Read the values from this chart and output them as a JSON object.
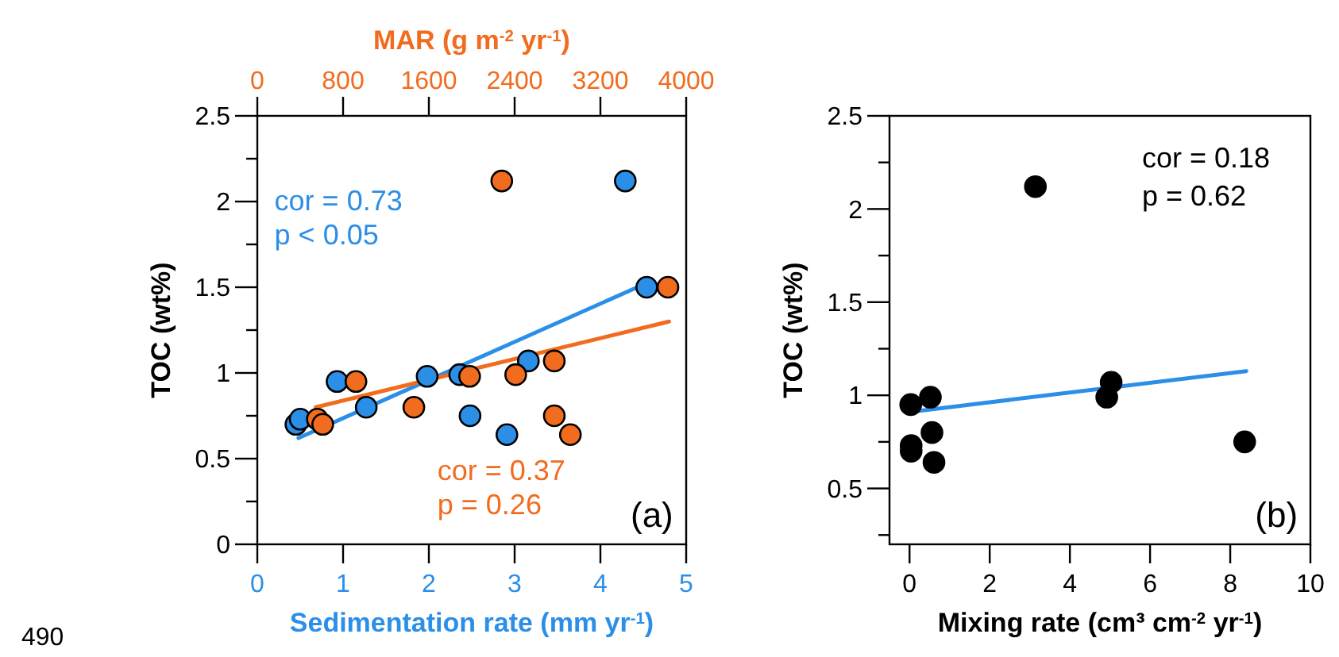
{
  "chart_data": [
    {
      "type": "scatter",
      "xlabel": "Sedimentation rate (mm yr$^{-1}$)",
      "ylabel": "TOC (wt%)",
      "x2label": "MAR (g m$^{-2}$ yr$^{-1}$)",
      "xlim": [
        0,
        5
      ],
      "xticks": [
        0,
        1,
        2,
        3,
        4,
        5
      ],
      "x2lim": [
        0,
        4000
      ],
      "x2ticks": [
        0,
        800,
        1600,
        2400,
        3200,
        4000
      ],
      "ylim": [
        0,
        2.5
      ],
      "yticks": [
        0,
        {
          "value": 0.25,
          "label": null
        },
        0.5,
        {
          "value": 0.75,
          "label": null
        },
        1,
        {
          "value": 1.25,
          "label": null
        },
        1.5,
        {
          "value": 1.75,
          "label": null
        },
        2,
        {
          "value": 2.25,
          "label": null
        },
        2.5
      ],
      "marker": "circle",
      "grid": false,
      "series": [
        {
          "color": "#2b8fe8",
          "x": [
            0.45,
            0.5,
            0.93,
            1.27,
            1.98,
            2.36,
            2.48,
            2.91,
            3.16,
            4.29,
            4.54
          ],
          "values": [
            0.7,
            0.73,
            0.95,
            0.8,
            0.98,
            0.99,
            0.75,
            0.64,
            1.07,
            2.12,
            1.5
          ]
        },
        {
          "axis": "x2",
          "color": "#f26c1f",
          "x": [
            560,
            610,
            920,
            1460,
            1980,
            2280,
            2410,
            2770,
            2770,
            2920,
            3830
          ],
          "values": [
            0.73,
            0.7,
            0.95,
            0.8,
            0.98,
            2.12,
            0.99,
            0.75,
            1.07,
            0.64,
            1.5
          ]
        },
        {
          "type": "line",
          "marker": "none",
          "color": "#2b8fe8",
          "x": [
            0.48,
            4.52
          ],
          "values": [
            0.62,
            1.52
          ]
        },
        {
          "type": "line",
          "marker": "none",
          "axis": "x2",
          "color": "#f26c1f",
          "x": [
            545,
            3840
          ],
          "values": [
            0.8,
            1.3
          ]
        }
      ],
      "annotations": [
        "cor = 0.73",
        "p < 0.05",
        "cor = 0.37",
        "p = 0.26",
        "(a)",
        "490"
      ]
    },
    {
      "type": "scatter",
      "xlabel": "Mixing rate (cm³ cm$^{-2}$ yr$^{-1}$)",
      "ylabel": "TOC (wt%)",
      "xlim": [
        -0.5,
        10
      ],
      "xticks": [
        0,
        2,
        4,
        6,
        8,
        10
      ],
      "ylim": [
        0.2,
        2.5
      ],
      "yticks": [
        {
          "value": 0.25,
          "label": null
        },
        0.5,
        {
          "value": 0.75,
          "label": null
        },
        1,
        {
          "value": 1.25,
          "label": null
        },
        1.5,
        {
          "value": 1.75,
          "label": null
        },
        2,
        {
          "value": 2.25,
          "label": null
        },
        2.5
      ],
      "marker": "circle",
      "grid": false,
      "series": [
        {
          "color": "#000000",
          "x": [
            0.03,
            0.04,
            0.04,
            0.52,
            0.56,
            0.61,
            3.14,
            5.03,
            4.92,
            8.36
          ],
          "values": [
            0.95,
            0.73,
            0.7,
            0.99,
            0.8,
            0.64,
            2.12,
            1.07,
            0.99,
            0.75
          ]
        },
        {
          "type": "line",
          "marker": "none",
          "color": "#2b8fe8",
          "x": [
            0,
            8.4
          ],
          "values": [
            0.91,
            1.13
          ]
        }
      ],
      "annotations": [
        "cor = 0.18",
        "p = 0.62",
        "(b)"
      ]
    }
  ]
}
